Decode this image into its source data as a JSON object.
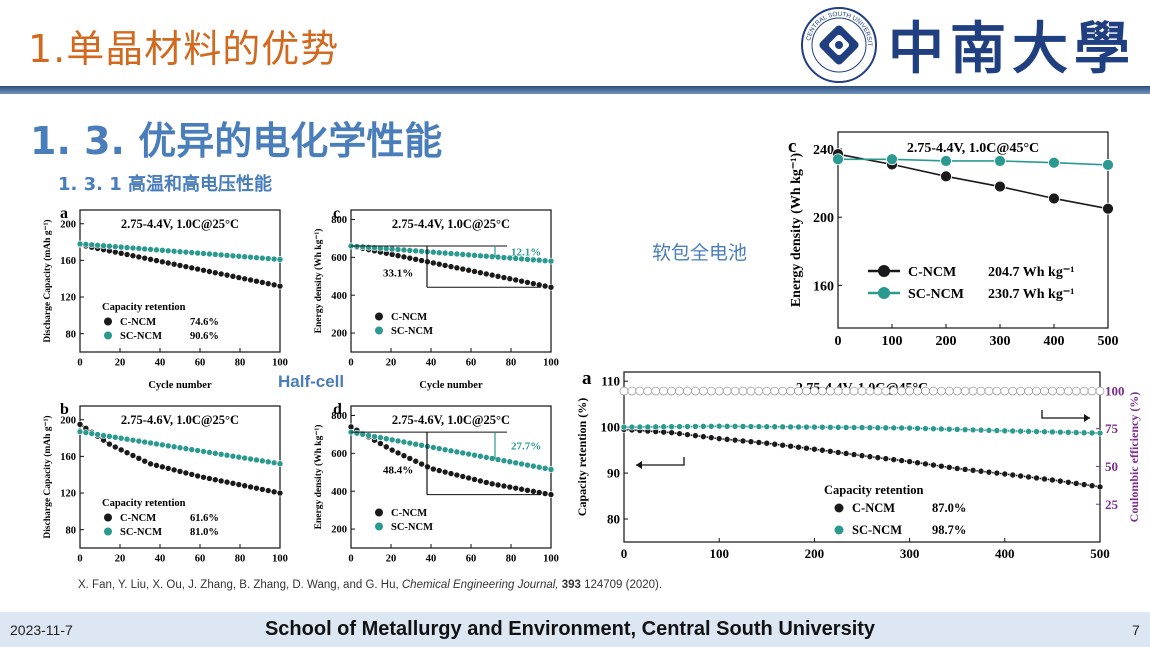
{
  "header": {
    "title": "1.单晶材料的优势",
    "university_name": "中南大學",
    "seal_text": "CENTRAL SOUTH UNIVERSITY"
  },
  "section": {
    "title": "1. 3. 优异的电化学性能",
    "subtitle": "1. 3. 1 高温和高电压性能"
  },
  "labels": {
    "pouch_cell": "软包全电池",
    "half_cell": "Half-cell"
  },
  "citation": {
    "authors": "X. Fan, Y. Liu, X. Ou, J. Zhang, B. Zhang, D. Wang, and G. Hu, ",
    "journal": "Chemical Engineering Journal, ",
    "volume": "393",
    "rest": " 124709 (2020)."
  },
  "footer": {
    "date": "2023-11-7",
    "institution": "School of Metallurgy and Environment, Central South University",
    "page": "7"
  },
  "colors": {
    "c_ncm": "#1a1a1a",
    "sc_ncm": "#2a9a90",
    "accent_purple": "#7b2d8e",
    "title_orange": "#d2691e",
    "heading_blue": "#4a7ebb"
  },
  "chart_data": [
    {
      "id": "half-a",
      "panel": "a",
      "type": "line",
      "condition": "2.75-4.4V, 1.0C@25°C",
      "xlabel": "Cycle number",
      "ylabel": "Discharge Capacity (mAh g⁻¹)",
      "xlim": [
        0,
        100
      ],
      "ylim": [
        60,
        215
      ],
      "xticks": [
        0,
        20,
        40,
        60,
        80,
        100
      ],
      "yticks": [
        80,
        120,
        160,
        200
      ],
      "legend_title": "Capacity retention",
      "series": [
        {
          "name": "C-NCM",
          "retention": "74.6%",
          "x": [
            0,
            100
          ],
          "y": [
            177,
            132
          ]
        },
        {
          "name": "SC-NCM",
          "retention": "90.6%",
          "x": [
            0,
            100
          ],
          "y": [
            178,
            161
          ]
        }
      ],
      "annotations": []
    },
    {
      "id": "half-c",
      "panel": "c",
      "type": "line",
      "condition": "2.75-4.4V, 1.0C@25°C",
      "xlabel": "Cycle number",
      "ylabel": "Energy density (Wh kg⁻¹)",
      "xlim": [
        0,
        100
      ],
      "ylim": [
        100,
        850
      ],
      "xticks": [
        0,
        20,
        40,
        60,
        80,
        100
      ],
      "yticks": [
        200,
        400,
        600,
        800
      ],
      "legend_title": "",
      "series": [
        {
          "name": "C-NCM",
          "x": [
            0,
            100
          ],
          "y": [
            660,
            442
          ]
        },
        {
          "name": "SC-NCM",
          "x": [
            0,
            100
          ],
          "y": [
            660,
            580
          ]
        }
      ],
      "annotations": [
        {
          "text": "12.1%",
          "series": "SC-NCM"
        },
        {
          "text": "33.1%",
          "series": "C-NCM"
        }
      ]
    },
    {
      "id": "half-b",
      "panel": "b",
      "type": "line",
      "condition": "2.75-4.6V, 1.0C@25°C",
      "xlabel": "",
      "ylabel": "Discharge Capacity (mAh g⁻¹)",
      "xlim": [
        0,
        100
      ],
      "ylim": [
        60,
        215
      ],
      "xticks": [
        0,
        20,
        40,
        60,
        80,
        100
      ],
      "yticks": [
        80,
        120,
        160,
        200
      ],
      "legend_title": "Capacity retention",
      "series": [
        {
          "name": "C-NCM",
          "retention": "61.6%",
          "x": [
            0,
            15,
            35,
            60,
            100
          ],
          "y": [
            195,
            173,
            152,
            138,
            120
          ]
        },
        {
          "name": "SC-NCM",
          "retention": "81.0%",
          "x": [
            0,
            100
          ],
          "y": [
            187,
            152
          ]
        }
      ],
      "annotations": []
    },
    {
      "id": "half-d",
      "panel": "d",
      "type": "line",
      "condition": "2.75-4.6V, 1.0C@25°C",
      "xlabel": "",
      "ylabel": "Energy density (Wh kg⁻¹)",
      "xlim": [
        0,
        100
      ],
      "ylim": [
        100,
        850
      ],
      "xticks": [
        0,
        20,
        40,
        60,
        80,
        100
      ],
      "yticks": [
        200,
        400,
        600,
        800
      ],
      "legend_title": "",
      "series": [
        {
          "name": "C-NCM",
          "x": [
            0,
            20,
            40,
            70,
            100
          ],
          "y": [
            740,
            620,
            520,
            440,
            382
          ]
        },
        {
          "name": "SC-NCM",
          "x": [
            0,
            100
          ],
          "y": [
            712,
            515
          ]
        }
      ],
      "annotations": [
        {
          "text": "27.7%",
          "series": "SC-NCM"
        },
        {
          "text": "48.4%",
          "series": "C-NCM"
        }
      ]
    },
    {
      "id": "pouch-c",
      "panel": "c",
      "type": "line",
      "condition": "2.75-4.4V, 1.0C@45°C",
      "xlabel": "",
      "ylabel": "Energy density (Wh kg⁻¹)",
      "xlim": [
        0,
        500
      ],
      "ylim": [
        135,
        250
      ],
      "xticks": [
        0,
        100,
        200,
        300,
        400,
        500
      ],
      "yticks": [
        160,
        200,
        240
      ],
      "series": [
        {
          "name": "C-NCM",
          "legend_value": "204.7 Wh kg⁻¹",
          "x": [
            0,
            100,
            200,
            300,
            400,
            500
          ],
          "y": [
            237,
            231,
            224,
            218,
            211,
            205
          ]
        },
        {
          "name": "SC-NCM",
          "legend_value": "230.7 Wh kg⁻¹",
          "x": [
            0,
            100,
            200,
            300,
            400,
            500
          ],
          "y": [
            234,
            234,
            233,
            233,
            232,
            230.7
          ]
        }
      ]
    },
    {
      "id": "pouch-a",
      "panel": "a",
      "type": "line",
      "condition": "2.75-4.4V, 1.0C@45°C",
      "xlabel": "",
      "ylabel": "Capacity retention (%)",
      "y2label": "Coulombic efficiency (%)",
      "xlim": [
        0,
        500
      ],
      "ylim": [
        75,
        112
      ],
      "y2lim": [
        0,
        112.5
      ],
      "xticks": [
        0,
        100,
        200,
        300,
        400,
        500
      ],
      "yticks": [
        80,
        90,
        100,
        110
      ],
      "y2ticks": [
        25,
        50,
        75,
        100
      ],
      "legend_title": "Capacity retention",
      "series": [
        {
          "name": "C-NCM",
          "retention": "87.0%",
          "x": [
            0,
            50,
            100,
            150,
            200,
            250,
            300,
            350,
            400,
            450,
            500
          ],
          "y": [
            99.5,
            98.8,
            97.5,
            96.5,
            95.2,
            93.8,
            92.5,
            91,
            89.8,
            88.5,
            87
          ]
        },
        {
          "name": "SC-NCM",
          "retention": "98.7%",
          "x": [
            0,
            100,
            200,
            300,
            400,
            500
          ],
          "y": [
            100,
            100.2,
            100,
            99.8,
            99.2,
            98.7
          ]
        },
        {
          "name": "Coulombic efficiency",
          "axis": "right",
          "x": [
            0,
            500
          ],
          "y": [
            99.9,
            99.9
          ]
        }
      ]
    }
  ]
}
